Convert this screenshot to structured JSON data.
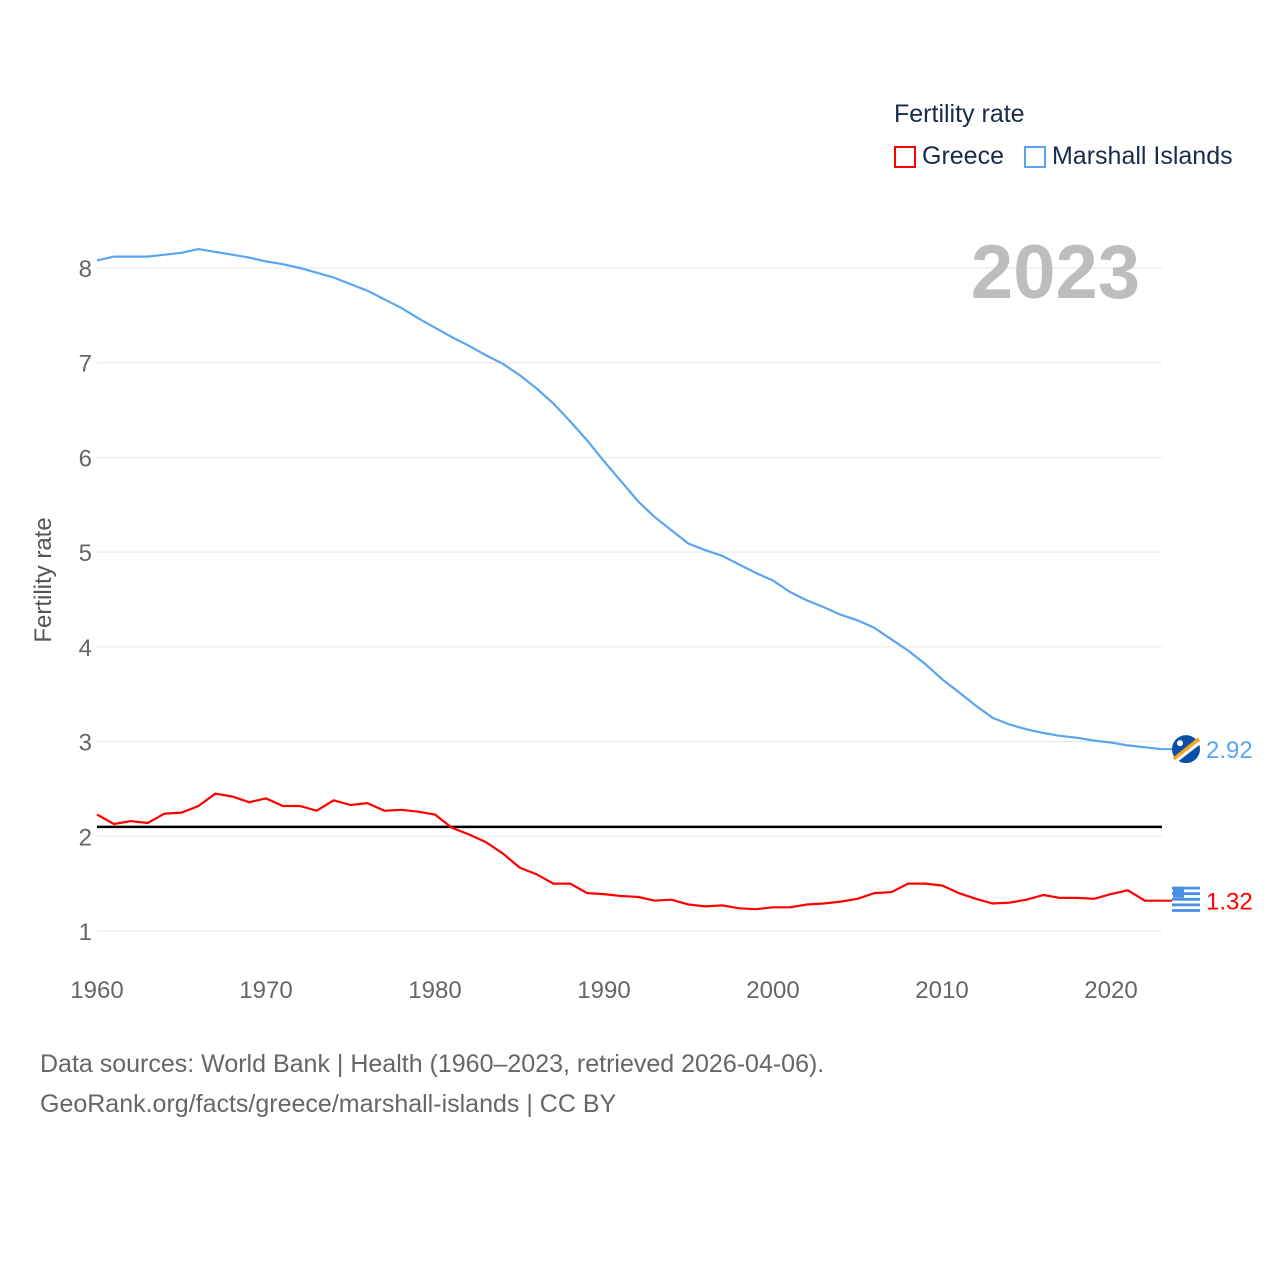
{
  "chart_data": {
    "type": "line",
    "title": "Fertility rate",
    "year_label": "2023",
    "ylabel": "Fertility rate",
    "xlabel": "",
    "xlim": [
      1960,
      2023
    ],
    "ylim": [
      0.6,
      8.6
    ],
    "x_ticks": [
      1960,
      1970,
      1980,
      1990,
      2000,
      2010,
      2020
    ],
    "y_ticks": [
      1,
      2,
      3,
      4,
      5,
      6,
      7,
      8
    ],
    "reference_line": 2.1,
    "grid": true,
    "legend_placement": "top-right",
    "x": [
      1960,
      1961,
      1962,
      1963,
      1964,
      1965,
      1966,
      1967,
      1968,
      1969,
      1970,
      1971,
      1972,
      1973,
      1974,
      1975,
      1976,
      1977,
      1978,
      1979,
      1980,
      1981,
      1982,
      1983,
      1984,
      1985,
      1986,
      1987,
      1988,
      1989,
      1990,
      1991,
      1992,
      1993,
      1994,
      1995,
      1996,
      1997,
      1998,
      1999,
      2000,
      2001,
      2002,
      2003,
      2004,
      2005,
      2006,
      2007,
      2008,
      2009,
      2010,
      2011,
      2012,
      2013,
      2014,
      2015,
      2016,
      2017,
      2018,
      2019,
      2020,
      2021,
      2022,
      2023
    ],
    "series": [
      {
        "name": "Greece",
        "color": "#ff0000",
        "end_label": "1.32",
        "values": [
          2.23,
          2.13,
          2.16,
          2.14,
          2.24,
          2.25,
          2.32,
          2.45,
          2.42,
          2.36,
          2.4,
          2.32,
          2.32,
          2.27,
          2.38,
          2.33,
          2.35,
          2.27,
          2.28,
          2.26,
          2.23,
          2.09,
          2.02,
          1.94,
          1.82,
          1.67,
          1.6,
          1.5,
          1.5,
          1.4,
          1.39,
          1.37,
          1.36,
          1.32,
          1.33,
          1.28,
          1.26,
          1.27,
          1.24,
          1.23,
          1.25,
          1.25,
          1.28,
          1.29,
          1.31,
          1.34,
          1.4,
          1.41,
          1.5,
          1.5,
          1.48,
          1.4,
          1.34,
          1.29,
          1.3,
          1.33,
          1.38,
          1.35,
          1.35,
          1.34,
          1.39,
          1.43,
          1.32,
          1.32
        ]
      },
      {
        "name": "Marshall Islands",
        "color": "#5aa5f0",
        "end_label": "2.92",
        "values": [
          8.08,
          8.12,
          8.12,
          8.12,
          8.14,
          8.16,
          8.2,
          8.17,
          8.14,
          8.11,
          8.07,
          8.04,
          8.0,
          7.95,
          7.9,
          7.83,
          7.76,
          7.67,
          7.58,
          7.47,
          7.37,
          7.27,
          7.18,
          7.08,
          6.99,
          6.87,
          6.73,
          6.57,
          6.38,
          6.18,
          5.96,
          5.75,
          5.54,
          5.37,
          5.23,
          5.09,
          5.02,
          4.96,
          4.87,
          4.78,
          4.7,
          4.58,
          4.49,
          4.42,
          4.34,
          4.28,
          4.2,
          4.08,
          3.96,
          3.82,
          3.66,
          3.52,
          3.38,
          3.25,
          3.18,
          3.13,
          3.09,
          3.06,
          3.04,
          3.01,
          2.99,
          2.96,
          2.94,
          2.92
        ]
      }
    ]
  },
  "footer": {
    "source_line": "Data sources: World Bank | Health (1960–2023, retrieved 2026-04-06).",
    "credit_line": "GeoRank.org/facts/greece/marshall-islands | CC BY"
  }
}
